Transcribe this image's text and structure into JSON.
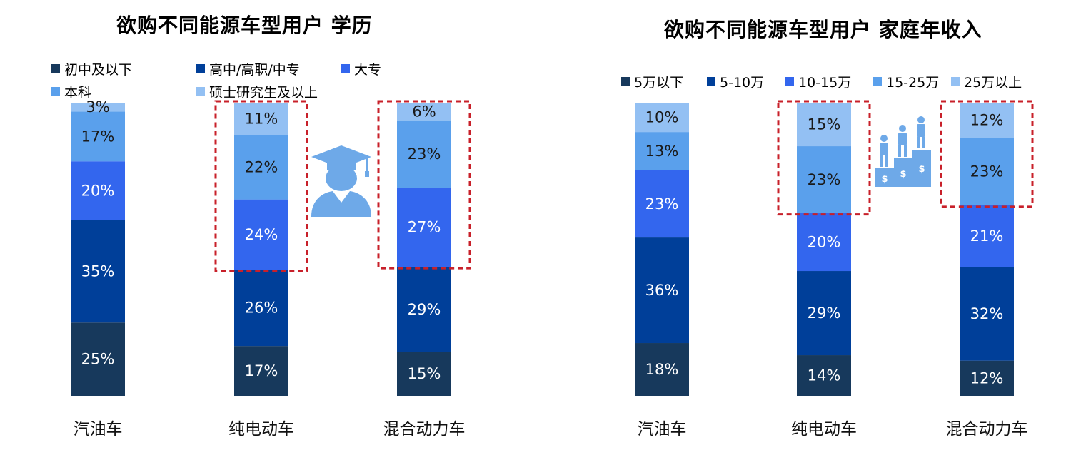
{
  "colors": {
    "s1": "#17395C",
    "s2": "#003F99",
    "s3": "#3366EE",
    "s4": "#5AA0EC",
    "s5": "#93C0F3",
    "highlight": "#C8202A",
    "icon": "#6EA9E8"
  },
  "icons": {
    "left": "graduate-icon",
    "right": "podium-people-icon"
  },
  "chart_data": [
    {
      "type": "bar",
      "stacked": true,
      "title": "欲购不同能源车型用户  学历",
      "categories": [
        "汽油车",
        "纯电动车",
        "混合动力车"
      ],
      "series": [
        {
          "name": "初中及以下",
          "values": [
            25,
            17,
            15
          ]
        },
        {
          "name": "高中/高职/中专",
          "values": [
            35,
            26,
            29
          ]
        },
        {
          "name": "大专",
          "values": [
            20,
            24,
            27
          ]
        },
        {
          "name": "本科",
          "values": [
            17,
            22,
            23
          ]
        },
        {
          "name": "硕士研究生及以上",
          "values": [
            3,
            11,
            6
          ]
        }
      ],
      "value_suffix": "%",
      "highlighted_categories": [
        "纯电动车",
        "混合动力车"
      ],
      "highlighted_series": [
        "大专",
        "本科",
        "硕士研究生及以上"
      ],
      "legend_position": "top-left"
    },
    {
      "type": "bar",
      "stacked": true,
      "title": "欲购不同能源车型用户  家庭年收入",
      "categories": [
        "汽油车",
        "纯电动车",
        "混合动力车"
      ],
      "series": [
        {
          "name": "5万以下",
          "values": [
            18,
            14,
            12
          ]
        },
        {
          "name": "5-10万",
          "values": [
            36,
            29,
            32
          ]
        },
        {
          "name": "10-15万",
          "values": [
            23,
            20,
            21
          ]
        },
        {
          "name": "15-25万",
          "values": [
            13,
            23,
            23
          ]
        },
        {
          "name": "25万以上",
          "values": [
            10,
            15,
            12
          ]
        }
      ],
      "value_suffix": "%",
      "highlighted_categories": [
        "纯电动车",
        "混合动力车"
      ],
      "highlighted_series": [
        "15-25万",
        "25万以上"
      ],
      "legend_position": "top"
    }
  ]
}
